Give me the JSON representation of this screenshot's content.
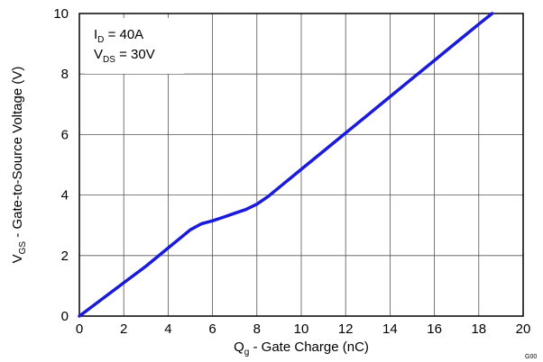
{
  "chart_data": {
    "type": "line",
    "xlabel": {
      "main": "Q",
      "sub": "g",
      "rest": " - Gate Charge  (nC)"
    },
    "ylabel": {
      "main": "V",
      "sub": "GS",
      "rest": " - Gate-to-Source Voltage (V)"
    },
    "xlim": [
      0,
      20
    ],
    "ylim": [
      0,
      10
    ],
    "x_ticks": [
      0,
      2,
      4,
      6,
      8,
      10,
      12,
      14,
      16,
      18,
      20
    ],
    "y_ticks": [
      0,
      2,
      4,
      6,
      8,
      10
    ],
    "grid": true,
    "line_color": "#1a1adb",
    "annotations": [
      {
        "main": "I",
        "sub": "D",
        "rest": " = 40A"
      },
      {
        "main": "V",
        "sub": "DS",
        "rest": " = 30V"
      }
    ],
    "series": [
      {
        "x": [
          0,
          1,
          2,
          3,
          4,
          4.5,
          5,
          5.5,
          6,
          6.5,
          7,
          7.5,
          8,
          8.5,
          9,
          10,
          11,
          12,
          13,
          14,
          15,
          16,
          17,
          18,
          18.6
        ],
        "y": [
          0,
          0.55,
          1.1,
          1.65,
          2.25,
          2.55,
          2.85,
          3.05,
          3.15,
          3.27,
          3.4,
          3.52,
          3.7,
          3.95,
          4.25,
          4.85,
          5.45,
          6.05,
          6.65,
          7.25,
          7.85,
          8.45,
          9.05,
          9.65,
          10.0
        ]
      }
    ],
    "figure_id": "G00"
  }
}
